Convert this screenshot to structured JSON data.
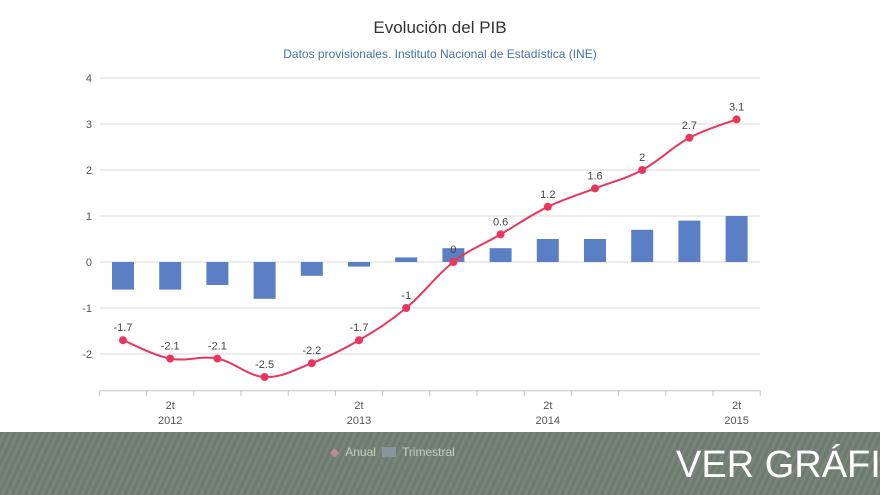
{
  "chart_data": {
    "type": "bar+line",
    "title": "Evolución del PIB",
    "subtitle": "Datos provisionales. Instituto Nacional de Estadística (INE)",
    "ylim": [
      -2.8,
      4
    ],
    "yticks": [
      -2,
      -1,
      0,
      1,
      2,
      3,
      4
    ],
    "x_labels": [
      {
        "index": 1,
        "q": "2t",
        "year": "2012"
      },
      {
        "index": 5,
        "q": "2t",
        "year": "2013"
      },
      {
        "index": 9,
        "q": "2t",
        "year": "2014"
      },
      {
        "index": 13,
        "q": "2t",
        "year": "2015"
      }
    ],
    "series": [
      {
        "name": "Anual",
        "type": "line",
        "color": "#e8365f",
        "values": [
          -1.7,
          -2.1,
          -2.1,
          -2.5,
          -2.2,
          -1.7,
          -1,
          0,
          0.6,
          1.2,
          1.6,
          2,
          2.7,
          3.1
        ]
      },
      {
        "name": "Trimestral",
        "type": "bar",
        "color": "#5b7fc4",
        "values": [
          -0.6,
          -0.6,
          -0.5,
          -0.8,
          -0.3,
          -0.1,
          0.1,
          0.3,
          0.3,
          0.5,
          0.5,
          0.7,
          0.9,
          1.0
        ]
      }
    ],
    "legend": "bottom"
  },
  "banner": {
    "text": "VER GRÁFICO"
  }
}
